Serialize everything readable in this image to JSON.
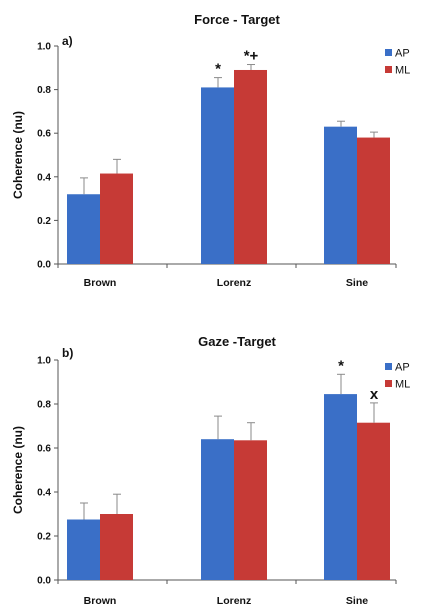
{
  "colors": {
    "AP": "#3a6fc7",
    "ML": "#c63a36",
    "error": "#8a8a8a"
  },
  "chart_data": [
    {
      "type": "bar",
      "panel": "a)",
      "title": "Force - Target",
      "ylabel": "Coherence (nu)",
      "ylim": [
        0.0,
        1.0
      ],
      "yticks": [
        "0.0",
        "0.2",
        "0.4",
        "0.6",
        "0.8",
        "1.0"
      ],
      "categories": [
        "Brown",
        "Lorenz",
        "Sine"
      ],
      "legend_position": "top-right",
      "series": [
        {
          "name": "AP",
          "values": [
            0.32,
            0.81,
            0.63
          ],
          "errors": [
            0.075,
            0.045,
            0.025
          ]
        },
        {
          "name": "ML",
          "values": [
            0.415,
            0.89,
            0.58
          ],
          "errors": [
            0.065,
            0.025,
            0.025
          ]
        }
      ],
      "annotations": [
        {
          "series": "AP",
          "category": "Lorenz",
          "text": "*"
        },
        {
          "series": "ML",
          "category": "Lorenz",
          "text": "*+"
        }
      ]
    },
    {
      "type": "bar",
      "panel": "b)",
      "title": "Gaze -Target",
      "ylabel": "Coherence (nu)",
      "ylim": [
        0.0,
        1.0
      ],
      "yticks": [
        "0.0",
        "0.2",
        "0.4",
        "0.6",
        "0.8",
        "1.0"
      ],
      "categories": [
        "Brown",
        "Lorenz",
        "Sine"
      ],
      "legend_position": "top-right",
      "series": [
        {
          "name": "AP",
          "values": [
            0.275,
            0.64,
            0.845
          ],
          "errors": [
            0.075,
            0.105,
            0.09
          ]
        },
        {
          "name": "ML",
          "values": [
            0.3,
            0.635,
            0.715
          ],
          "errors": [
            0.09,
            0.08,
            0.09
          ]
        }
      ],
      "annotations": [
        {
          "series": "AP",
          "category": "Sine",
          "text": "*"
        },
        {
          "series": "ML",
          "category": "Sine",
          "text": "x"
        }
      ]
    }
  ]
}
